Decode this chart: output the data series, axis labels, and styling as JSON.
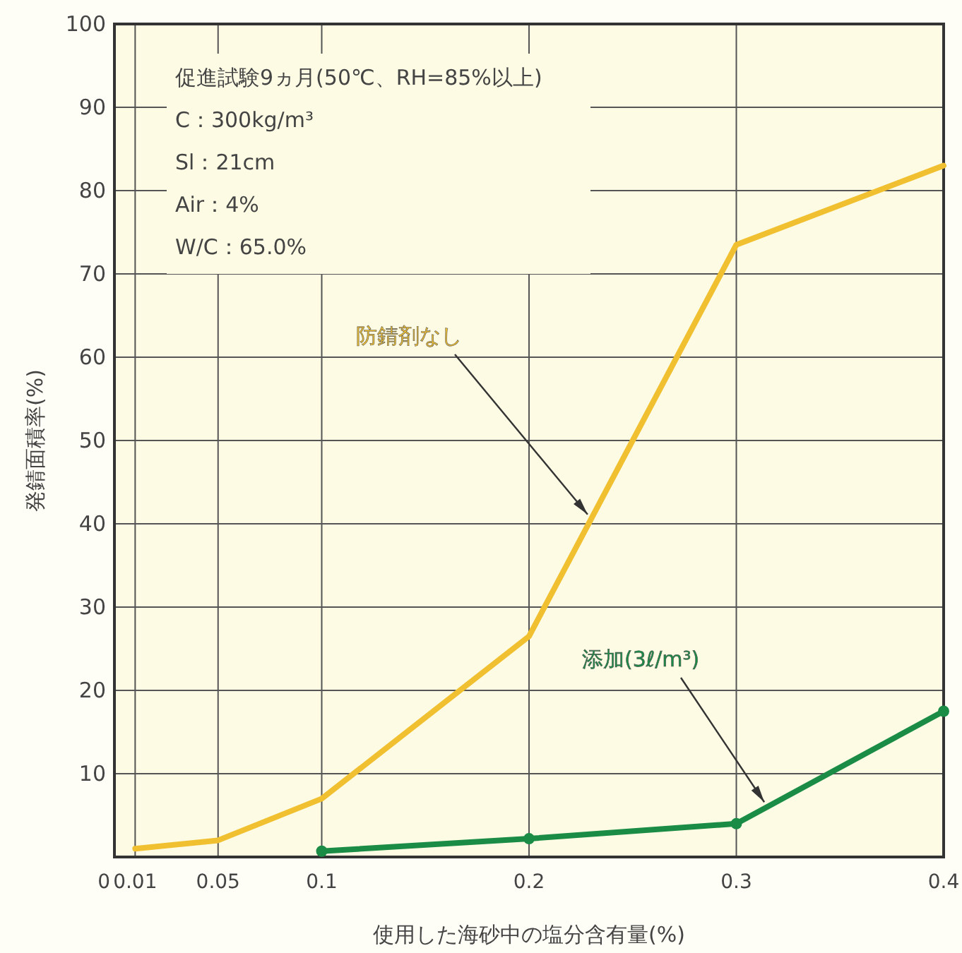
{
  "chart_data": {
    "type": "line",
    "xlabel": "使用した海砂中の塩分含有量(%)",
    "ylabel": "発錆面積率(%)",
    "series": [
      {
        "name": "防錆剤なし",
        "color": "#f0c030",
        "x": [
          0.01,
          0.05,
          0.1,
          0.2,
          0.3,
          0.4
        ],
        "values": [
          1,
          2,
          7,
          26.5,
          73.5,
          83
        ]
      },
      {
        "name": "添加(3ℓ/m³)",
        "color": "#1a8c46",
        "marker": "circle",
        "x": [
          0.1,
          0.2,
          0.3,
          0.4
        ],
        "values": [
          0.7,
          2.2,
          4,
          17.5
        ]
      }
    ],
    "xlim": [
      0,
      0.4
    ],
    "ylim": [
      0,
      100
    ],
    "xticks": [
      0,
      0.01,
      0.05,
      0.1,
      0.2,
      0.3,
      0.4
    ],
    "yticks": [
      {
        "value": 0,
        "label": null
      },
      10,
      20,
      30,
      40,
      50,
      60,
      70,
      80,
      90,
      100
    ],
    "grid": true,
    "annotations": [
      "促進試験9ヵ月(50℃、RH=85%以上)",
      "C：300kg/m³",
      "Sl：21cm",
      "Air：4%",
      "W/C：65.0%"
    ]
  }
}
